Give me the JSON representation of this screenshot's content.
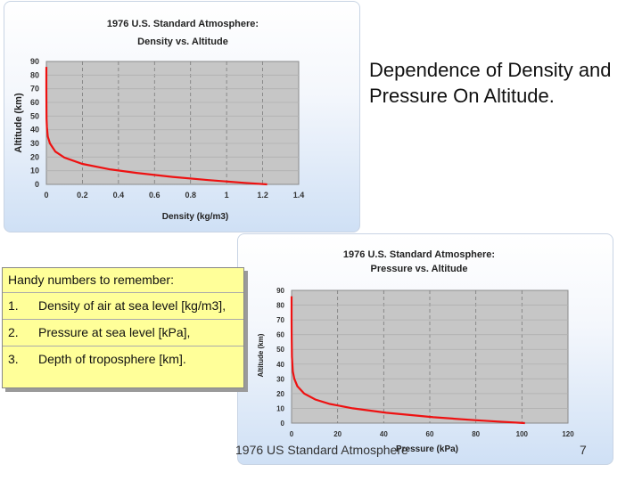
{
  "slide": {
    "title": "Dependence of Density and Pressure On Altitude.",
    "footer": "1976 US Standard Atmosphere",
    "page_number": "7"
  },
  "handy_box": {
    "title": "Handy numbers to remember:",
    "items": [
      {
        "num": "1.",
        "text": "Density of air at sea level [kg/m3],"
      },
      {
        "num": "2.",
        "text": "Pressure at sea level [kPa],"
      },
      {
        "num": "3.",
        "text": "Depth of troposphere [km]."
      }
    ]
  },
  "chart_data": [
    {
      "type": "line",
      "title": "1976 U.S. Standard Atmosphere:",
      "subtitle": "Density vs. Altitude",
      "xlabel": "Density (kg/m3)",
      "ylabel": "Altitude (km)",
      "xlim": [
        0,
        1.4
      ],
      "ylim": [
        0,
        90
      ],
      "xticks": [
        "0",
        "0.2",
        "0.4",
        "0.6",
        "0.8",
        "1",
        "1.2",
        "1.4"
      ],
      "yticks": [
        "0",
        "10",
        "20",
        "30",
        "40",
        "50",
        "60",
        "70",
        "80",
        "90"
      ],
      "grid": true,
      "line_color": "#ee1111",
      "series": [
        {
          "x": [
            1.225,
            1.1,
            0.9,
            0.7,
            0.5,
            0.35,
            0.2,
            0.1,
            0.05,
            0.02,
            0.008,
            0.003,
            0.001,
            0.0003,
            8e-05,
            2e-05
          ],
          "y": [
            0,
            1.1,
            3.1,
            5.5,
            8.4,
            11.0,
            15.0,
            19.6,
            24.0,
            30.0,
            35.0,
            42.0,
            48.0,
            58.0,
            70.0,
            86.0
          ]
        }
      ]
    },
    {
      "type": "line",
      "title": "1976 U.S. Standard Atmosphere:",
      "subtitle": "Pressure vs. Altitude",
      "xlabel": "Pressure (kPa)",
      "ylabel": "Altitude (km)",
      "xlim": [
        0,
        120
      ],
      "ylim": [
        0,
        90
      ],
      "xticks": [
        "0",
        "20",
        "40",
        "60",
        "80",
        "100",
        "120"
      ],
      "yticks": [
        "0",
        "10",
        "20",
        "30",
        "40",
        "50",
        "60",
        "70",
        "80",
        "90"
      ],
      "grid": true,
      "line_color": "#ee1111",
      "series": [
        {
          "x": [
            101.3,
            89.9,
            79.5,
            61.6,
            41.1,
            26.5,
            16.6,
            10.3,
            5.5,
            2.5,
            1.2,
            0.55,
            0.14,
            0.02,
            0.0037,
            0.0003
          ],
          "y": [
            0,
            1,
            2,
            4,
            7,
            10,
            13,
            16,
            20,
            25,
            30,
            35,
            45,
            60,
            70,
            86
          ]
        }
      ]
    }
  ]
}
